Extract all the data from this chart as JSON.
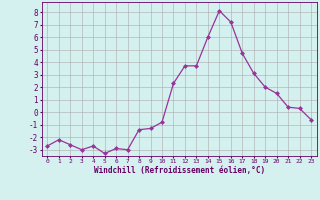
{
  "x": [
    0,
    1,
    2,
    3,
    4,
    5,
    6,
    7,
    8,
    9,
    10,
    11,
    12,
    13,
    14,
    15,
    16,
    17,
    18,
    19,
    20,
    21,
    22,
    23
  ],
  "y": [
    -2.7,
    -2.2,
    -2.6,
    -3.0,
    -2.7,
    -3.3,
    -2.9,
    -3.0,
    -1.4,
    -1.3,
    -0.8,
    2.3,
    3.7,
    3.7,
    6.0,
    8.1,
    7.2,
    4.7,
    3.1,
    2.0,
    1.5,
    0.4,
    0.3,
    -0.6
  ],
  "line_color": "#993399",
  "marker": "D",
  "marker_size": 2,
  "bg_color": "#d4f0ef",
  "grid_color": "#aaaaaa",
  "xlabel": "Windchill (Refroidissement éolien,°C)",
  "xlim_min": -0.5,
  "xlim_max": 23.5,
  "ylim_min": -3.5,
  "ylim_max": 8.8,
  "xtick_labels": [
    "0",
    "1",
    "2",
    "3",
    "4",
    "5",
    "6",
    "7",
    "8",
    "9",
    "10",
    "11",
    "12",
    "13",
    "14",
    "15",
    "16",
    "17",
    "18",
    "19",
    "20",
    "21",
    "22",
    "23"
  ],
  "ytick_values": [
    -3,
    -2,
    -1,
    0,
    1,
    2,
    3,
    4,
    5,
    6,
    7,
    8
  ],
  "font_color": "#660066"
}
